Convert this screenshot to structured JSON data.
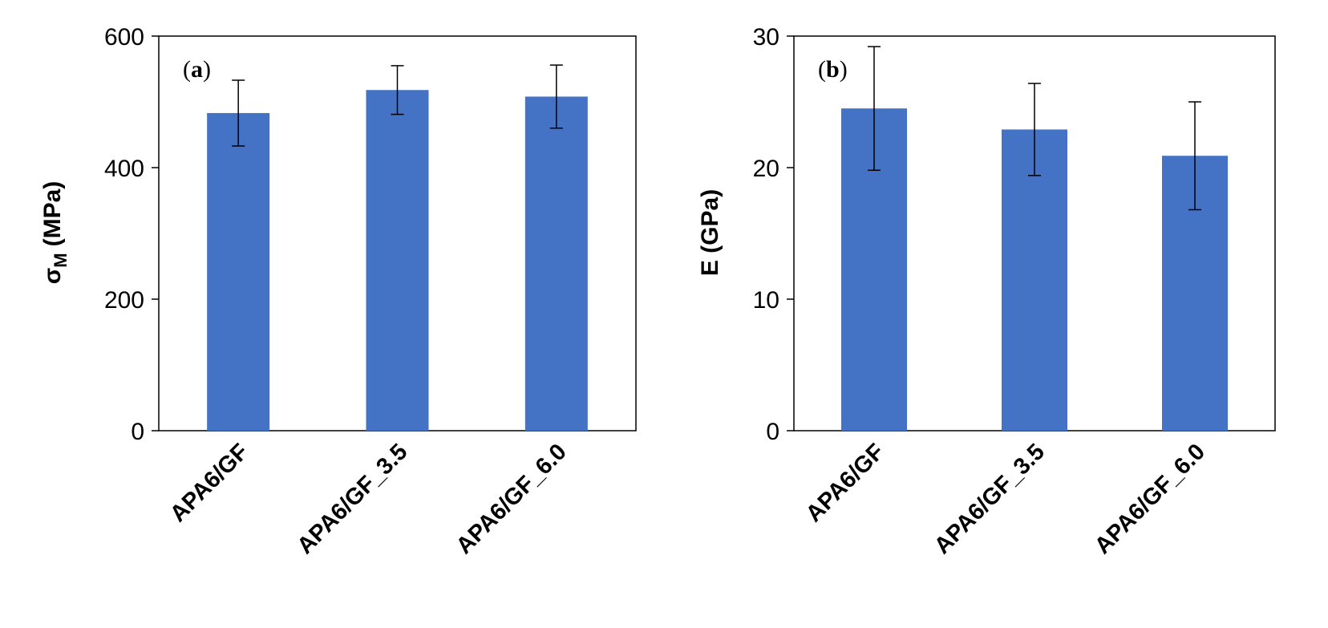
{
  "chart_data": [
    {
      "type": "bar",
      "panel_label": "a",
      "title": "",
      "xlabel": "",
      "ylabel": "σ",
      "ylabel_subscript": "M",
      "ylabel_unit": "(MPa)",
      "categories": [
        "APA6/GF",
        "APA6/GF_3.5",
        "APA6/GF_6.0"
      ],
      "values": [
        483,
        518,
        508
      ],
      "errors": [
        50,
        37,
        48
      ],
      "ylim": [
        0,
        600
      ],
      "yticks": [
        0,
        200,
        400,
        600
      ],
      "grid": false,
      "bar_color": "#4472C4"
    },
    {
      "type": "bar",
      "panel_label": "b",
      "title": "",
      "xlabel": "",
      "ylabel": "E (GPa)",
      "categories": [
        "APA6/GF",
        "APA6/GF_3.5",
        "APA6/GF_6.0"
      ],
      "values": [
        24.5,
        22.9,
        20.9
      ],
      "errors": [
        4.7,
        3.5,
        4.1
      ],
      "ylim": [
        0,
        30
      ],
      "yticks": [
        0,
        10,
        20,
        30
      ],
      "grid": false,
      "bar_color": "#4472C4"
    }
  ]
}
